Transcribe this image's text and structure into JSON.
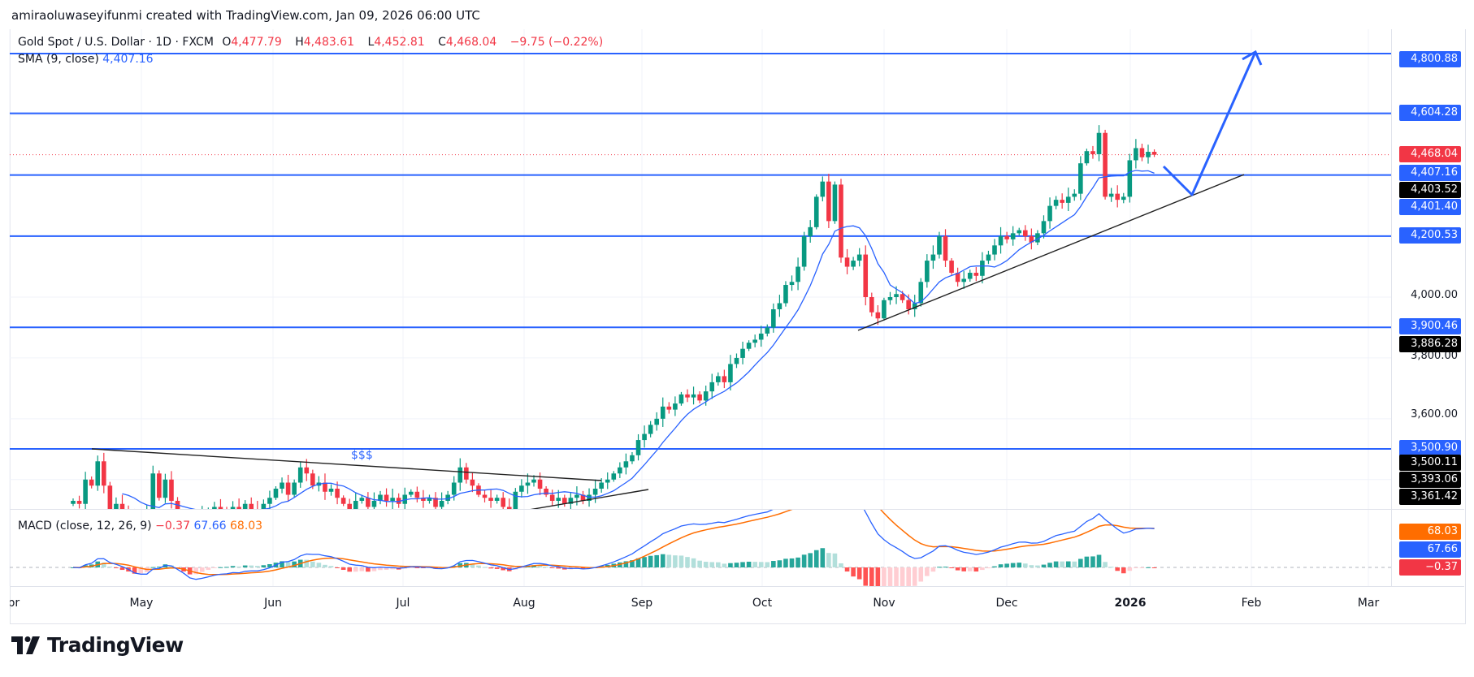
{
  "credit": "amiraoluwaseyifunmi created with TradingView.com, Jan 09, 2026 06:00 UTC",
  "legend": {
    "symbol": "Gold Spot / U.S. Dollar · 1D · FXCM",
    "open_prefix": "O",
    "open": "4,477.79",
    "high_prefix": "H",
    "high": "4,483.61",
    "low_prefix": "L",
    "low": "4,452.81",
    "close_prefix": "C",
    "close": "4,468.04",
    "change": "−9.75 (−0.22%)",
    "sma_label": "SMA (9, close)",
    "sma_value": "4,407.16"
  },
  "macd_legend": {
    "label": "MACD (close, 12, 26, 9)",
    "hist": "−0.37",
    "macd": "67.66",
    "signal": "68.03"
  },
  "annotation_text": "$$$",
  "price_axis_ticks": [
    "4,000.00",
    "3,800.00",
    "3,600.00"
  ],
  "price_labels": [
    {
      "text": "4,800.88",
      "color": "#2962ff"
    },
    {
      "text": "4,604.28",
      "color": "#2962ff"
    },
    {
      "text": "4,468.04",
      "color": "#f23645"
    },
    {
      "text": "4,407.16",
      "color": "#2962ff"
    },
    {
      "text": "4,403.52",
      "color": "#000000"
    },
    {
      "text": "4,401.40",
      "color": "#2962ff"
    },
    {
      "text": "4,200.53",
      "color": "#2962ff"
    },
    {
      "text": "3,900.46",
      "color": "#2962ff"
    },
    {
      "text": "3,886.28",
      "color": "#000000"
    },
    {
      "text": "3,500.90",
      "color": "#2962ff"
    },
    {
      "text": "3,500.11",
      "color": "#000000"
    },
    {
      "text": "3,393.06",
      "color": "#000000"
    },
    {
      "text": "3,361.42",
      "color": "#000000"
    }
  ],
  "macd_labels": [
    {
      "text": "68.03",
      "color": "#ff6d00"
    },
    {
      "text": "67.66",
      "color": "#2962ff"
    },
    {
      "text": "−0.37",
      "color": "#f23645"
    }
  ],
  "x_axis_labels": [
    "Apr",
    "May",
    "Jun",
    "Jul",
    "Aug",
    "Sep",
    "Oct",
    "Nov",
    "Dec",
    "2026",
    "Feb",
    "Mar"
  ],
  "logo_text": "TradingView",
  "colors": {
    "up": "#089981",
    "down": "#f23645",
    "level": "#2962ff",
    "sma": "#2962ff",
    "macd": "#2962ff",
    "signal": "#ff6d00"
  },
  "chart_data": {
    "type": "candlestick",
    "symbol": "XAUUSD",
    "timeframe": "1D",
    "ylim": [
      3303,
      4880
    ],
    "horizontal_levels": [
      4800.88,
      4604.28,
      4401.4,
      4200.53,
      3900.46,
      3500.9
    ],
    "last_close": 4468.04,
    "indicators": [
      "SMA 9",
      "MACD 12 26 9"
    ],
    "closes": [
      3330,
      3320,
      3400,
      3380,
      3460,
      3380,
      3290,
      3320,
      3300,
      3280,
      3240,
      3280,
      3300,
      3420,
      3340,
      3400,
      3330,
      3260,
      3230,
      3190,
      3240,
      3290,
      3300,
      3310,
      3300,
      3290,
      3310,
      3280,
      3320,
      3300,
      3290,
      3320,
      3340,
      3370,
      3390,
      3350,
      3390,
      3440,
      3420,
      3380,
      3390,
      3360,
      3370,
      3340,
      3320,
      3300,
      3330,
      3340,
      3310,
      3330,
      3350,
      3330,
      3340,
      3320,
      3350,
      3360,
      3340,
      3330,
      3340,
      3310,
      3330,
      3350,
      3390,
      3440,
      3400,
      3380,
      3350,
      3340,
      3330,
      3340,
      3310,
      3300,
      3360,
      3380,
      3390,
      3400,
      3370,
      3350,
      3330,
      3340,
      3320,
      3340,
      3350,
      3330,
      3350,
      3370,
      3390,
      3400,
      3420,
      3440,
      3460,
      3480,
      3530,
      3550,
      3580,
      3600,
      3640,
      3630,
      3650,
      3680,
      3670,
      3680,
      3660,
      3690,
      3720,
      3740,
      3720,
      3780,
      3800,
      3830,
      3850,
      3860,
      3880,
      3900,
      3960,
      3980,
      4040,
      4050,
      4100,
      4200,
      4230,
      4330,
      4380,
      4250,
      4370,
      4130,
      4100,
      4120,
      4140,
      4000,
      3950,
      3930,
      3990,
      4000,
      4010,
      3990,
      3960,
      3980,
      4050,
      4120,
      4140,
      4200,
      4120,
      4080,
      4050,
      4060,
      4080,
      4070,
      4120,
      4140,
      4170,
      4200,
      4190,
      4210,
      4220,
      4200,
      4180,
      4210,
      4250,
      4300,
      4320,
      4310,
      4330,
      4340,
      4440,
      4480,
      4470,
      4540,
      4330,
      4340,
      4320,
      4330,
      4450,
      4490,
      4460,
      4477.79,
      4468.04
    ]
  }
}
